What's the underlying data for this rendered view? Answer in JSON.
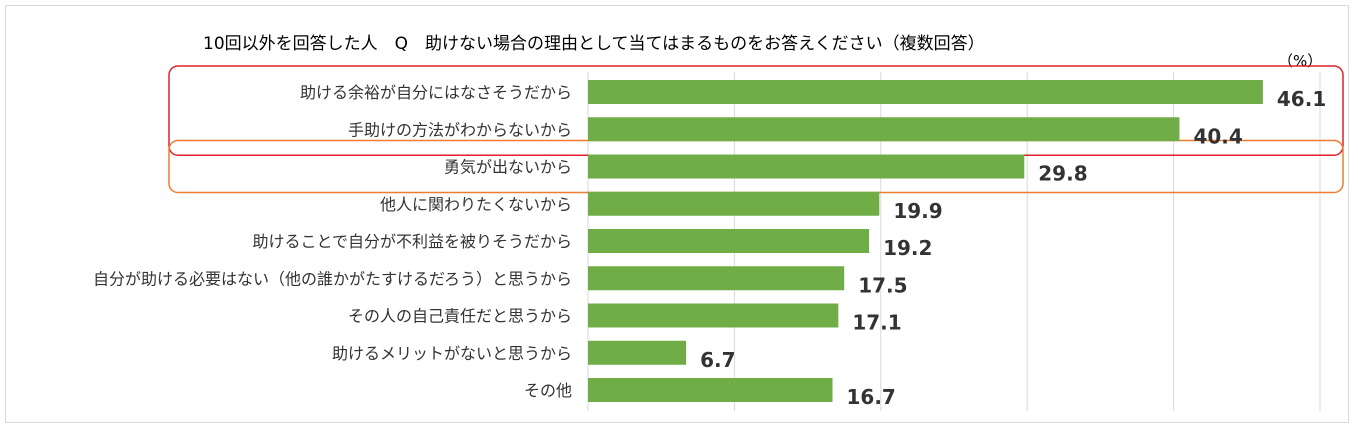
{
  "chart_data": {
    "type": "bar",
    "orientation": "horizontal",
    "title": "10回以外を回答した人　Q　助けない場合の理由として当てはまるものをお答えください（複数回答）",
    "unit": "（%）",
    "categories": [
      "助ける余裕が自分にはなさそうだから",
      "手助けの方法がわからないから",
      "勇気が出ないから",
      "他人に関わりたくないから",
      "助けることで自分が不利益を被りそうだから",
      "自分が助ける必要はない（他の誰かがたすけるだろう）と思うから",
      "その人の自己責任だと思うから",
      "助けるメリットがないと思うから",
      "その他"
    ],
    "values": [
      46.1,
      40.4,
      29.8,
      19.9,
      19.2,
      17.5,
      17.1,
      6.7,
      16.7
    ],
    "value_labels": [
      "46.1",
      "40.4",
      "29.8",
      "19.9",
      "19.2",
      "17.5",
      "17.1",
      "6.7",
      "16.7"
    ],
    "xlim": [
      0,
      50
    ],
    "grid": true,
    "bar_color": "#70ad47",
    "highlights": [
      {
        "categories": [
          0,
          1
        ],
        "color": "#e0202a"
      },
      {
        "categories": [
          2
        ],
        "color": "#ed7d31"
      }
    ]
  }
}
